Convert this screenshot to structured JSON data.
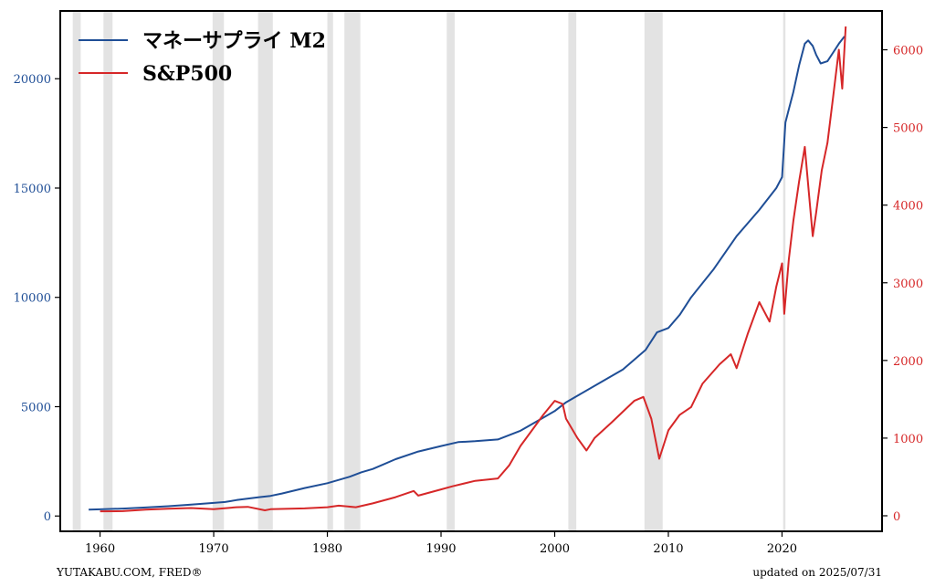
{
  "chart_data": {
    "type": "line",
    "x_ticks": [
      1960,
      1970,
      1980,
      1990,
      2000,
      2010,
      2020
    ],
    "xlim": [
      1956.5,
      2028.8
    ],
    "left_axis": {
      "ticks": [
        0,
        5000,
        10000,
        15000,
        20000
      ],
      "ylim": [
        -700,
        23100
      ],
      "color": "#1f4e96"
    },
    "right_axis": {
      "ticks": [
        0,
        1000,
        2000,
        3000,
        4000,
        5000,
        6000
      ],
      "ylim": [
        -200,
        6500
      ],
      "color": "#d62728"
    },
    "legend_position": "top-left",
    "recessions": [
      [
        1957.6,
        1958.3
      ],
      [
        1960.3,
        1961.1
      ],
      [
        1969.9,
        1970.9
      ],
      [
        1973.9,
        1975.2
      ],
      [
        1980.0,
        1980.5
      ],
      [
        1981.5,
        1982.9
      ],
      [
        1990.5,
        1991.2
      ],
      [
        2001.2,
        2001.9
      ],
      [
        2007.9,
        2009.5
      ],
      [
        2020.1,
        2020.3
      ]
    ],
    "series": [
      {
        "name": "マネーサプライ M2",
        "color": "#1f4e96",
        "axis": "left",
        "points": [
          [
            1959.0,
            290
          ],
          [
            1960.0,
            305
          ],
          [
            1962.0,
            340
          ],
          [
            1964.0,
            390
          ],
          [
            1966.0,
            450
          ],
          [
            1968.0,
            520
          ],
          [
            1970.0,
            600
          ],
          [
            1971.0,
            640
          ],
          [
            1972.0,
            730
          ],
          [
            1974.0,
            860
          ],
          [
            1975.0,
            920
          ],
          [
            1976.0,
            1030
          ],
          [
            1978.0,
            1280
          ],
          [
            1980.0,
            1500
          ],
          [
            1982.0,
            1800
          ],
          [
            1983.0,
            2000
          ],
          [
            1984.0,
            2150
          ],
          [
            1986.0,
            2600
          ],
          [
            1988.0,
            2950
          ],
          [
            1990.0,
            3200
          ],
          [
            1991.5,
            3380
          ],
          [
            1993.0,
            3420
          ],
          [
            1995.0,
            3500
          ],
          [
            1997.0,
            3900
          ],
          [
            1999.0,
            4500
          ],
          [
            2000.0,
            4800
          ],
          [
            2001.0,
            5200
          ],
          [
            2002.0,
            5500
          ],
          [
            2004.0,
            6100
          ],
          [
            2006.0,
            6700
          ],
          [
            2008.0,
            7600
          ],
          [
            2009.0,
            8400
          ],
          [
            2010.0,
            8600
          ],
          [
            2011.0,
            9200
          ],
          [
            2012.0,
            10000
          ],
          [
            2014.0,
            11300
          ],
          [
            2016.0,
            12800
          ],
          [
            2018.0,
            14000
          ],
          [
            2019.5,
            15000
          ],
          [
            2020.0,
            15500
          ],
          [
            2020.3,
            18000
          ],
          [
            2020.6,
            18600
          ],
          [
            2021.0,
            19400
          ],
          [
            2021.5,
            20600
          ],
          [
            2022.0,
            21600
          ],
          [
            2022.3,
            21750
          ],
          [
            2022.7,
            21500
          ],
          [
            2023.0,
            21100
          ],
          [
            2023.4,
            20700
          ],
          [
            2024.0,
            20800
          ],
          [
            2024.5,
            21200
          ],
          [
            2025.0,
            21600
          ],
          [
            2025.5,
            21940
          ]
        ]
      },
      {
        "name": "S&P500",
        "color": "#d62728",
        "axis": "right",
        "points": [
          [
            1960.0,
            58
          ],
          [
            1962.0,
            60
          ],
          [
            1964.0,
            80
          ],
          [
            1966.0,
            90
          ],
          [
            1968.0,
            100
          ],
          [
            1970.0,
            85
          ],
          [
            1972.0,
            110
          ],
          [
            1973.0,
            115
          ],
          [
            1974.5,
            70
          ],
          [
            1975.0,
            85
          ],
          [
            1978.0,
            95
          ],
          [
            1980.0,
            110
          ],
          [
            1981.0,
            130
          ],
          [
            1982.5,
            110
          ],
          [
            1984.0,
            160
          ],
          [
            1986.0,
            240
          ],
          [
            1987.6,
            320
          ],
          [
            1988.0,
            260
          ],
          [
            1990.0,
            340
          ],
          [
            1991.0,
            380
          ],
          [
            1993.0,
            450
          ],
          [
            1995.0,
            480
          ],
          [
            1996.0,
            650
          ],
          [
            1997.0,
            900
          ],
          [
            1998.0,
            1100
          ],
          [
            1999.0,
            1300
          ],
          [
            2000.0,
            1480
          ],
          [
            2000.7,
            1440
          ],
          [
            2001.0,
            1250
          ],
          [
            2002.0,
            1000
          ],
          [
            2002.8,
            840
          ],
          [
            2003.5,
            1000
          ],
          [
            2005.0,
            1200
          ],
          [
            2007.0,
            1480
          ],
          [
            2007.8,
            1530
          ],
          [
            2008.5,
            1250
          ],
          [
            2009.2,
            735
          ],
          [
            2010.0,
            1100
          ],
          [
            2011.0,
            1300
          ],
          [
            2012.0,
            1400
          ],
          [
            2013.0,
            1700
          ],
          [
            2014.5,
            1950
          ],
          [
            2015.5,
            2080
          ],
          [
            2016.0,
            1900
          ],
          [
            2017.0,
            2350
          ],
          [
            2018.0,
            2750
          ],
          [
            2018.9,
            2500
          ],
          [
            2019.5,
            2950
          ],
          [
            2020.0,
            3250
          ],
          [
            2020.2,
            2600
          ],
          [
            2020.6,
            3300
          ],
          [
            2021.0,
            3800
          ],
          [
            2021.5,
            4300
          ],
          [
            2022.0,
            4750
          ],
          [
            2022.7,
            3600
          ],
          [
            2023.0,
            3900
          ],
          [
            2023.5,
            4450
          ],
          [
            2024.0,
            4800
          ],
          [
            2024.5,
            5400
          ],
          [
            2025.0,
            6000
          ],
          [
            2025.3,
            5500
          ],
          [
            2025.6,
            6300
          ]
        ]
      }
    ]
  },
  "footer": {
    "source": "YUTAKABU.COM, FRED®",
    "updated": "updated on 2025/07/31"
  }
}
